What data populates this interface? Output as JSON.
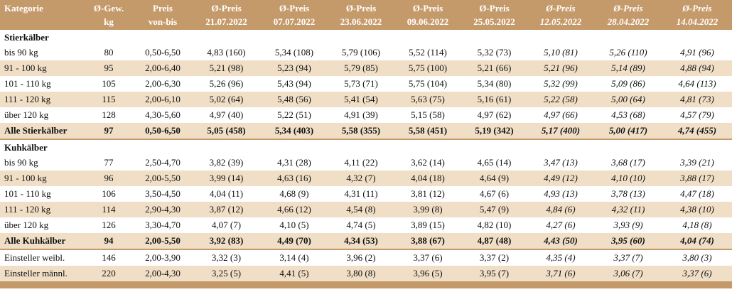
{
  "header": {
    "row1": [
      "Kategorie",
      "Ø-Gew.",
      "Preis",
      "Ø-Preis",
      "Ø-Preis",
      "Ø-Preis",
      "Ø-Preis",
      "Ø-Preis",
      "Ø-Preis",
      "Ø-Preis",
      "Ø-Preis"
    ],
    "row2": [
      "",
      "kg",
      "von-bis",
      "21.07.2022",
      "07.07.2022",
      "23.06.2022",
      "09.06.2022",
      "25.05.2022",
      "12.05.2022",
      "28.04.2022",
      "14.04.2022"
    ]
  },
  "colors": {
    "header_bg": "#c59a6a",
    "row_alt_bg": "#f0dfc6"
  },
  "sections": [
    {
      "title": "Stierkälber",
      "rows": [
        [
          "bis 90 kg",
          "80",
          "0,50-6,50",
          "4,83 (160)",
          "5,34 (108)",
          "5,79 (106)",
          "5,52 (114)",
          "5,32 (73)",
          "5,10 (81)",
          "5,26 (110)",
          "4,91 (96)"
        ],
        [
          "91 - 100 kg",
          "95",
          "2,00-6,40",
          "5,21 (98)",
          "5,23 (94)",
          "5,79 (85)",
          "5,75 (100)",
          "5,21 (66)",
          "5,21 (96)",
          "5,14 (89)",
          "4,88 (94)"
        ],
        [
          "101 - 110 kg",
          "105",
          "2,00-6,30",
          "5,26 (96)",
          "5,43 (94)",
          "5,73 (71)",
          "5,75 (104)",
          "5,34 (80)",
          "5,32 (99)",
          "5,09 (86)",
          "4,64 (113)"
        ],
        [
          "111 - 120 kg",
          "115",
          "2,00-6,10",
          "5,02 (64)",
          "5,48 (56)",
          "5,41 (54)",
          "5,63 (75)",
          "5,16 (61)",
          "5,22 (58)",
          "5,00 (64)",
          "4,81 (73)"
        ],
        [
          "über 120 kg",
          "128",
          "4,30-5,60",
          "4,97 (40)",
          "5,22 (51)",
          "4,91 (39)",
          "5,15 (58)",
          "4,97 (62)",
          "4,97 (66)",
          "4,53 (68)",
          "4,57 (79)"
        ]
      ],
      "total": [
        "Alle Stierkälber",
        "97",
        "0,50-6,50",
        "5,05 (458)",
        "5,34 (403)",
        "5,58 (355)",
        "5,58 (451)",
        "5,19 (342)",
        "5,17 (400)",
        "5,00 (417)",
        "4,74 (455)"
      ]
    },
    {
      "title": "Kuhkälber",
      "rows": [
        [
          "bis 90 kg",
          "77",
          "2,50-4,70",
          "3,82 (39)",
          "4,31 (28)",
          "4,11 (22)",
          "3,62 (14)",
          "4,65 (14)",
          "3,47 (13)",
          "3,68 (17)",
          "3,39 (21)"
        ],
        [
          "91 - 100 kg",
          "96",
          "2,00-5,50",
          "3,99 (14)",
          "4,63 (16)",
          "4,32 (7)",
          "4,04 (18)",
          "4,64 (9)",
          "4,49 (12)",
          "4,10 (10)",
          "3,88 (17)"
        ],
        [
          "101 - 110 kg",
          "106",
          "3,50-4,50",
          "4,04 (11)",
          "4,68 (9)",
          "4,31 (11)",
          "3,81 (12)",
          "4,67 (6)",
          "4,93 (13)",
          "3,78 (13)",
          "4,47 (18)"
        ],
        [
          "111 - 120 kg",
          "114",
          "2,90-4,30",
          "3,87 (12)",
          "4,66 (12)",
          "4,54 (8)",
          "3,99 (8)",
          "5,47 (9)",
          "4,84 (6)",
          "4,32 (11)",
          "4,38 (10)"
        ],
        [
          "über 120 kg",
          "126",
          "3,30-4,70",
          "4,07 (7)",
          "4,10 (5)",
          "4,74 (5)",
          "3,89 (15)",
          "4,82 (10)",
          "4,27 (6)",
          "3,93 (9)",
          "4,18 (8)"
        ]
      ],
      "total": [
        "Alle Kuhkälber",
        "94",
        "2,00-5,50",
        "3,92 (83)",
        "4,49 (70)",
        "4,34 (53)",
        "3,88 (67)",
        "4,87 (48)",
        "4,43 (50)",
        "3,95 (60)",
        "4,04 (74)"
      ]
    }
  ],
  "extra_rows": [
    [
      "Einsteller weibl.",
      "146",
      "2,00-3,90",
      "3,32 (3)",
      "3,14 (4)",
      "3,96 (2)",
      "3,37 (6)",
      "3,37 (2)",
      "4,35 (4)",
      "3,37 (7)",
      "3,80 (3)"
    ],
    [
      "Einsteller männl.",
      "220",
      "2,00-4,30",
      "3,25 (5)",
      "4,41 (5)",
      "3,80 (8)",
      "3,96 (5)",
      "3,95 (7)",
      "3,71 (6)",
      "3,06 (7)",
      "3,37 (6)"
    ]
  ]
}
